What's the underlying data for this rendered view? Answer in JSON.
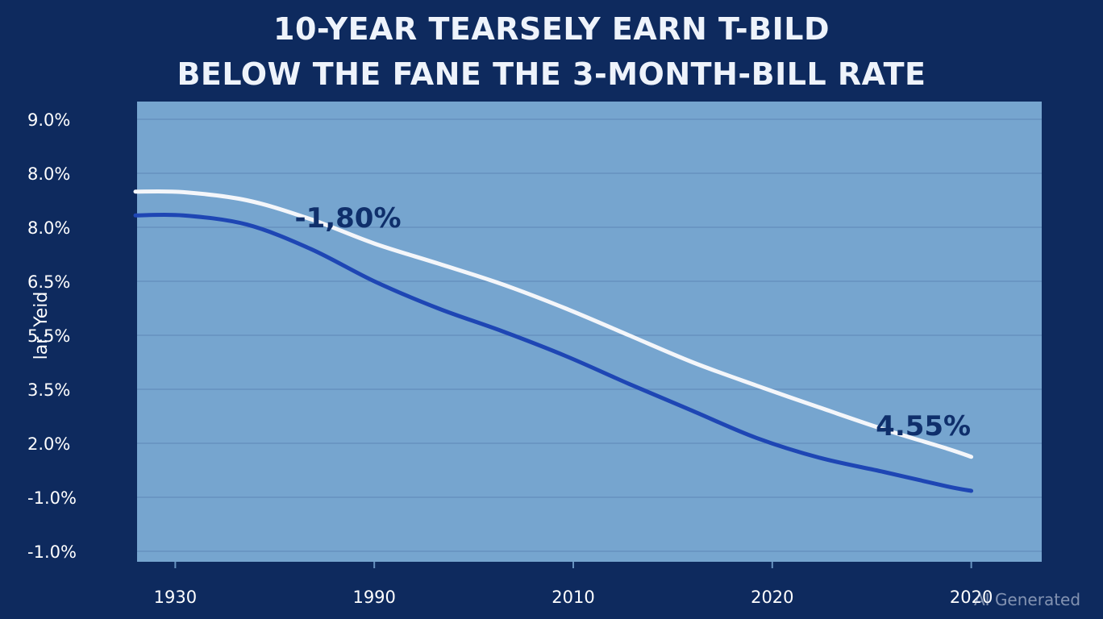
{
  "watermark": "AI Generated",
  "colors": {
    "page_background": "#0e2a5e",
    "plot_background": "#76a5cf",
    "gridline": "#6792bf",
    "series_white": "#f4f6fa",
    "series_blue": "#1e46b4",
    "annotation_text": "#0f2f6b"
  },
  "chart_data": {
    "type": "line",
    "title_lines": [
      "10-YEAR TEARSELY EARN T-BILD",
      "BELOW THE FANE THE 3-MONTH-BILL RATE"
    ],
    "ylabel": "lar. Yeid",
    "xlabel": "",
    "grid": true,
    "legend": "none",
    "y_tick_labels": [
      "9.0%",
      "8.0%",
      "8.0%",
      "6.5%",
      "5.5%",
      "3.5%",
      "2.0%",
      "-1.0%",
      "-1.0%"
    ],
    "x_tick_labels": [
      "1930",
      "1990",
      "2010",
      "2020",
      "2020"
    ],
    "x_tick_index_positions": [
      0.5,
      3.0,
      5.5,
      8.0,
      10.5
    ],
    "y_index_range": [
      0,
      8
    ],
    "x_index_range": [
      0,
      11
    ],
    "series": [
      {
        "color": "#f4f6fa",
        "points": [
          [
            0,
            6.66
          ],
          [
            0.6,
            6.65
          ],
          [
            1.4,
            6.5
          ],
          [
            2.2,
            6.15
          ],
          [
            3.0,
            5.7
          ],
          [
            3.8,
            5.33
          ],
          [
            4.6,
            4.95
          ],
          [
            5.4,
            4.5
          ],
          [
            6.2,
            4.0
          ],
          [
            7.0,
            3.5
          ],
          [
            7.8,
            3.07
          ],
          [
            8.6,
            2.66
          ],
          [
            9.4,
            2.26
          ],
          [
            10.2,
            1.9
          ],
          [
            10.5,
            1.75
          ]
        ]
      },
      {
        "color": "#1e46b4",
        "points": [
          [
            0,
            6.22
          ],
          [
            0.6,
            6.22
          ],
          [
            1.4,
            6.05
          ],
          [
            2.2,
            5.6
          ],
          [
            3.0,
            5.0
          ],
          [
            3.8,
            4.5
          ],
          [
            4.6,
            4.08
          ],
          [
            5.4,
            3.62
          ],
          [
            6.2,
            3.1
          ],
          [
            7.0,
            2.6
          ],
          [
            7.8,
            2.1
          ],
          [
            8.6,
            1.73
          ],
          [
            9.4,
            1.47
          ],
          [
            10.2,
            1.2
          ],
          [
            10.5,
            1.12
          ]
        ]
      }
    ],
    "annotations": [
      {
        "text": "-1,80%",
        "x": 2.0,
        "y": 6.0
      },
      {
        "text": "4.55%",
        "x": 9.3,
        "y": 2.15
      }
    ]
  }
}
